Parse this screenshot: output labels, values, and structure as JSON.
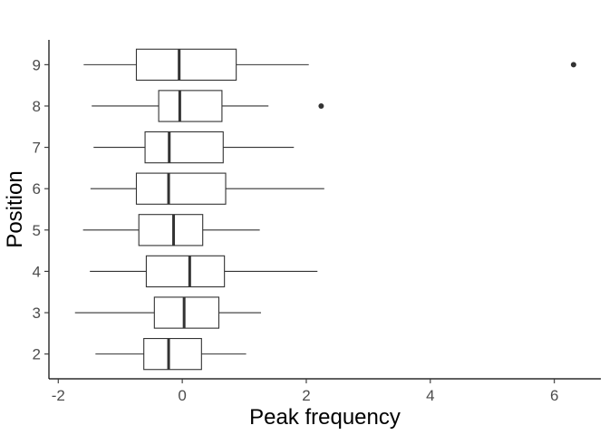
{
  "chart_data": {
    "type": "boxplot",
    "orientation": "horizontal",
    "xlabel": "Peak frequency",
    "ylabel": "Position",
    "xlim": [
      -2.15,
      6.75
    ],
    "x_ticks": [
      -2,
      0,
      2,
      4,
      6
    ],
    "x_tick_labels": [
      "-2",
      "0",
      "2",
      "4",
      "6"
    ],
    "grid": false,
    "categories": [
      "2",
      "3",
      "4",
      "5",
      "6",
      "7",
      "8",
      "9"
    ],
    "boxes": [
      {
        "category": "2",
        "whisker_low": -1.4,
        "q1": -0.62,
        "median": -0.22,
        "q3": 0.31,
        "whisker_high": 1.03,
        "outliers": []
      },
      {
        "category": "3",
        "whisker_low": -1.73,
        "q1": -0.45,
        "median": 0.03,
        "q3": 0.59,
        "whisker_high": 1.27,
        "outliers": []
      },
      {
        "category": "4",
        "whisker_low": -1.49,
        "q1": -0.58,
        "median": 0.12,
        "q3": 0.68,
        "whisker_high": 2.18,
        "outliers": []
      },
      {
        "category": "5",
        "whisker_low": -1.6,
        "q1": -0.7,
        "median": -0.14,
        "q3": 0.33,
        "whisker_high": 1.25,
        "outliers": []
      },
      {
        "category": "6",
        "whisker_low": -1.48,
        "q1": -0.74,
        "median": -0.22,
        "q3": 0.7,
        "whisker_high": 2.29,
        "outliers": []
      },
      {
        "category": "7",
        "whisker_low": -1.43,
        "q1": -0.6,
        "median": -0.21,
        "q3": 0.66,
        "whisker_high": 1.8,
        "outliers": []
      },
      {
        "category": "8",
        "whisker_low": -1.46,
        "q1": -0.38,
        "median": -0.04,
        "q3": 0.64,
        "whisker_high": 1.39,
        "outliers": [
          2.24
        ]
      },
      {
        "category": "9",
        "whisker_low": -1.59,
        "q1": -0.74,
        "median": -0.05,
        "q3": 0.87,
        "whisker_high": 2.04,
        "outliers": [
          6.31
        ]
      }
    ]
  }
}
